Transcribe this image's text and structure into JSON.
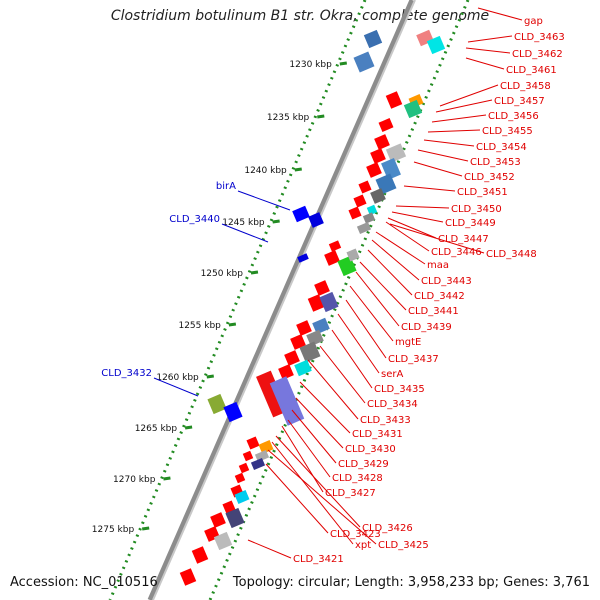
{
  "title": "Clostridium botulinum B1 str. Okra, complete genome",
  "accession": "Accession: NC_010516",
  "topology": "Topology: circular; Length: 3,958,233 bp; Genes: 3,761",
  "colors": {
    "cds_red": "#ff0000",
    "label_red": "#e00000",
    "label_blue": "#0000cc",
    "backbone": "#888888",
    "ruler_dots": "#228b22"
  },
  "kbp_ticks": [
    "1230 kbp",
    "1235 kbp",
    "1240 kbp",
    "1245 kbp",
    "1250 kbp",
    "1255 kbp",
    "1260 kbp",
    "1265 kbp",
    "1270 kbp",
    "1275 kbp"
  ],
  "right_labels": [
    "gap",
    "CLD_3463",
    "CLD_3462",
    "CLD_3461",
    "CLD_3458",
    "CLD_3457",
    "CLD_3456",
    "CLD_3455",
    "CLD_3454",
    "CLD_3453",
    "CLD_3452",
    "CLD_3451",
    "CLD_3450",
    "CLD_3449",
    "CLD_3447",
    "CLD_3446",
    "CLD_3448",
    "maa",
    "CLD_3443",
    "CLD_3442",
    "CLD_3441",
    "CLD_3439",
    "mgtE",
    "CLD_3437",
    "serA",
    "CLD_3435",
    "CLD_3434",
    "CLD_3433",
    "CLD_3431",
    "CLD_3430",
    "CLD_3429",
    "CLD_3428",
    "CLD_3427",
    "CLD_3426",
    "xpt",
    "CLD_3425",
    "CLD_3423",
    "CLD_3421"
  ],
  "left_labels": [
    "birA",
    "CLD_3440",
    "CLD_3432"
  ]
}
